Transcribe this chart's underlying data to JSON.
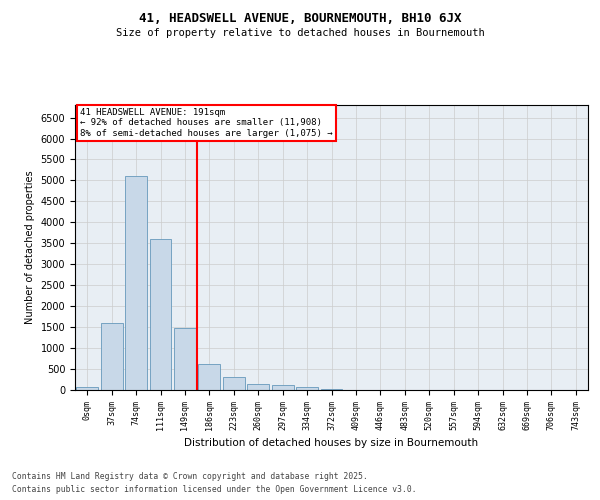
{
  "title_line1": "41, HEADSWELL AVENUE, BOURNEMOUTH, BH10 6JX",
  "title_line2": "Size of property relative to detached houses in Bournemouth",
  "xlabel": "Distribution of detached houses by size in Bournemouth",
  "ylabel": "Number of detached properties",
  "categories": [
    "0sqm",
    "37sqm",
    "74sqm",
    "111sqm",
    "149sqm",
    "186sqm",
    "223sqm",
    "260sqm",
    "297sqm",
    "334sqm",
    "372sqm",
    "409sqm",
    "446sqm",
    "483sqm",
    "520sqm",
    "557sqm",
    "594sqm",
    "632sqm",
    "669sqm",
    "706sqm",
    "743sqm"
  ],
  "values": [
    75,
    1600,
    5100,
    3600,
    1480,
    620,
    300,
    150,
    110,
    65,
    20,
    5,
    2,
    1,
    0,
    0,
    0,
    0,
    0,
    0,
    0
  ],
  "bar_color": "#c8d8e8",
  "bar_edge_color": "#6699bb",
  "vline_x_index": 5,
  "vline_color": "red",
  "annotation_text": "41 HEADSWELL AVENUE: 191sqm\n← 92% of detached houses are smaller (11,908)\n8% of semi-detached houses are larger (1,075) →",
  "annotation_box_color": "white",
  "annotation_box_edge_color": "red",
  "ylim": [
    0,
    6800
  ],
  "yticks": [
    0,
    500,
    1000,
    1500,
    2000,
    2500,
    3000,
    3500,
    4000,
    4500,
    5000,
    5500,
    6000,
    6500
  ],
  "grid_color": "#cccccc",
  "background_color": "#e8eef4",
  "footer_line1": "Contains HM Land Registry data © Crown copyright and database right 2025.",
  "footer_line2": "Contains public sector information licensed under the Open Government Licence v3.0.",
  "fig_width": 6.0,
  "fig_height": 5.0,
  "dpi": 100
}
